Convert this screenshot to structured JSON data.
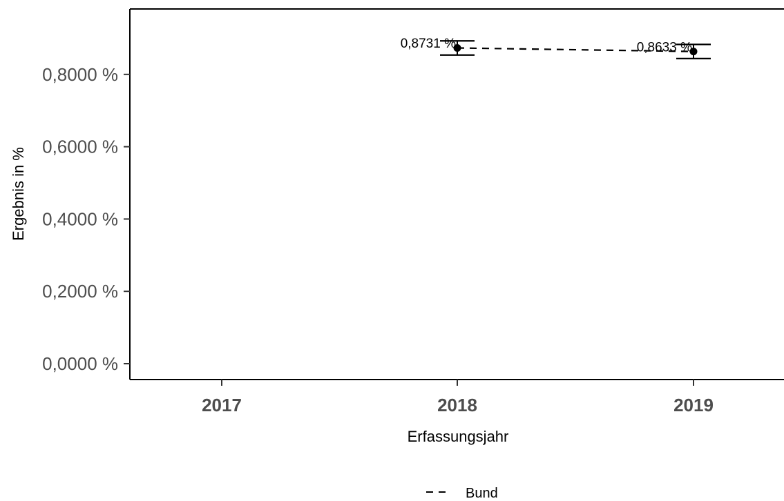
{
  "chart_data": {
    "type": "line",
    "title": "",
    "xlabel": "Erfassungsjahr",
    "ylabel": "Ergebnis in %",
    "x_categories": [
      "2017",
      "2018",
      "2019"
    ],
    "ylim": [
      0,
      0.95
    ],
    "y_ticks": [
      0,
      0.2,
      0.4,
      0.6,
      0.8
    ],
    "y_tick_labels": [
      "0,0000 %",
      "0,2000 %",
      "0,4000 %",
      "0,6000 %",
      "0,8000 %"
    ],
    "grid": false,
    "legend_position": "bottom",
    "series": [
      {
        "name": "Bund",
        "line_style": "dashed",
        "color": "#000000",
        "points": [
          {
            "x": "2018",
            "y": 0.8731,
            "ci_low": 0.8535,
            "ci_high": 0.8927,
            "label": "0,8731 %"
          },
          {
            "x": "2019",
            "y": 0.8633,
            "ci_low": 0.8437,
            "ci_high": 0.8829,
            "label": "0,8633 %"
          }
        ]
      }
    ]
  }
}
